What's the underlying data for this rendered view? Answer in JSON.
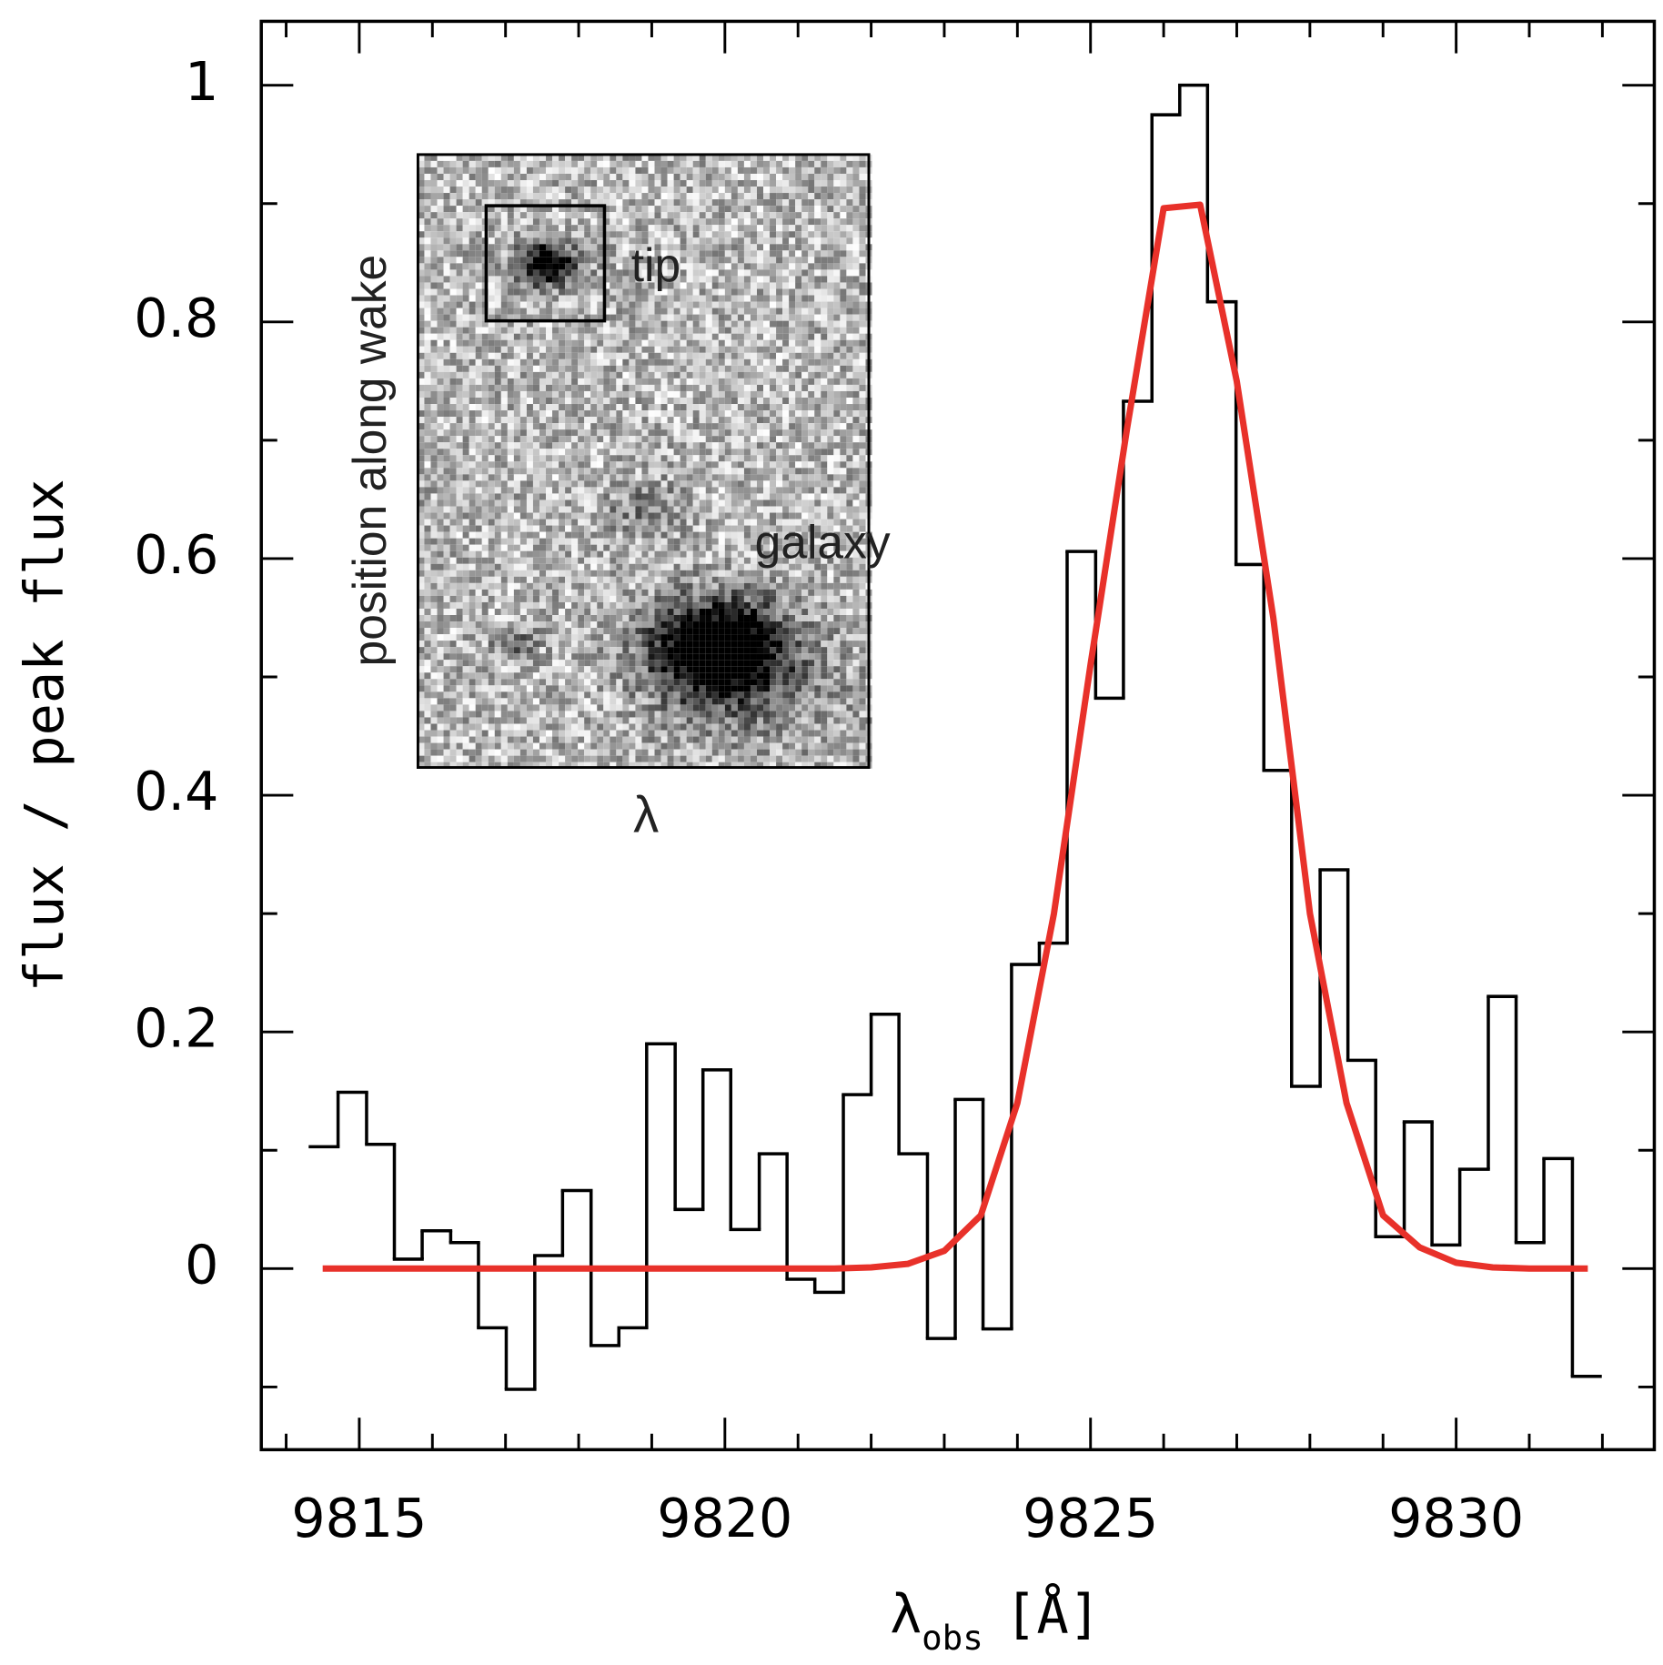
{
  "chart_data": {
    "type": "histogram",
    "x_label": {
      "symbol": "λ",
      "subscript": "obs",
      "unit": "[Å]"
    },
    "y_label": "flux / peak flux",
    "bins": [
      9814.33,
      9814.71,
      9815.1,
      9815.48,
      9815.86,
      9816.25,
      9816.63,
      9817.01,
      9817.4,
      9817.78,
      9818.17,
      9818.55,
      9818.93,
      9819.32,
      9819.7,
      9820.08,
      9820.47,
      9820.85,
      9821.23,
      9821.62,
      9822.0,
      9822.38,
      9822.77,
      9823.15,
      9823.53,
      9823.92,
      9824.3,
      9824.68,
      9825.07,
      9825.45,
      9825.84,
      9826.22,
      9826.6,
      9826.99,
      9827.37,
      9827.75,
      9828.14,
      9828.52,
      9828.9,
      9829.29,
      9829.67,
      9830.05,
      9830.44,
      9830.82,
      9831.2,
      9831.59,
      9831.97
    ],
    "values": [
      0.103,
      0.149,
      0.105,
      0.008,
      0.032,
      0.022,
      -0.05,
      -0.102,
      0.011,
      0.066,
      -0.065,
      -0.05,
      0.19,
      0.05,
      0.168,
      0.033,
      0.097,
      -0.009,
      -0.02,
      0.147,
      0.215,
      0.097,
      -0.059,
      0.143,
      -0.051,
      0.257,
      0.275,
      0.606,
      0.482,
      0.733,
      0.975,
      1.0,
      0.817,
      0.595,
      0.421,
      0.154,
      0.337,
      0.176,
      0.027,
      0.124,
      0.02,
      0.084,
      0.23,
      0.022,
      0.093,
      -0.091
    ],
    "color": "#000000",
    "fit": {
      "color": "#e8312a",
      "x": [
        9814.5,
        9815,
        9815.5,
        9816,
        9816.5,
        9817,
        9817.5,
        9818,
        9818.5,
        9819,
        9819.5,
        9820,
        9820.5,
        9821,
        9821.5,
        9822,
        9822.5,
        9823,
        9823.5,
        9824,
        9824.5,
        9825,
        9825.5,
        9826,
        9826.5,
        9827,
        9827.5,
        9828,
        9828.5,
        9829,
        9829.5,
        9830,
        9830.5,
        9831,
        9831.5,
        9831.8
      ],
      "values": [
        0,
        0,
        0,
        0,
        0,
        0,
        0,
        0,
        0,
        0,
        0,
        0,
        0,
        0,
        0,
        0.001,
        0.004,
        0.015,
        0.045,
        0.14,
        0.3,
        0.51,
        0.71,
        0.896,
        0.899,
        0.75,
        0.55,
        0.3,
        0.14,
        0.045,
        0.018,
        0.005,
        0.001,
        0,
        0,
        0
      ]
    },
    "xlim": [
      9813.66,
      9832.71
    ],
    "ylim": [
      -0.153,
      1.054
    ],
    "xticks": [
      9815,
      9820,
      9825,
      9830
    ],
    "xticks_minor": [
      9814,
      9816,
      9817,
      9818,
      9819,
      9821,
      9822,
      9823,
      9824,
      9826,
      9827,
      9828,
      9829,
      9831,
      9832
    ],
    "yticks": [
      0,
      0.2,
      0.4,
      0.6,
      0.8,
      1
    ],
    "yticks_minor": [
      -0.1,
      0.1,
      0.3,
      0.5,
      0.7,
      0.9
    ],
    "inset": {
      "annotations": [
        "tip",
        "galaxy"
      ],
      "y_label": "position along wake",
      "x_label": "λ"
    }
  }
}
